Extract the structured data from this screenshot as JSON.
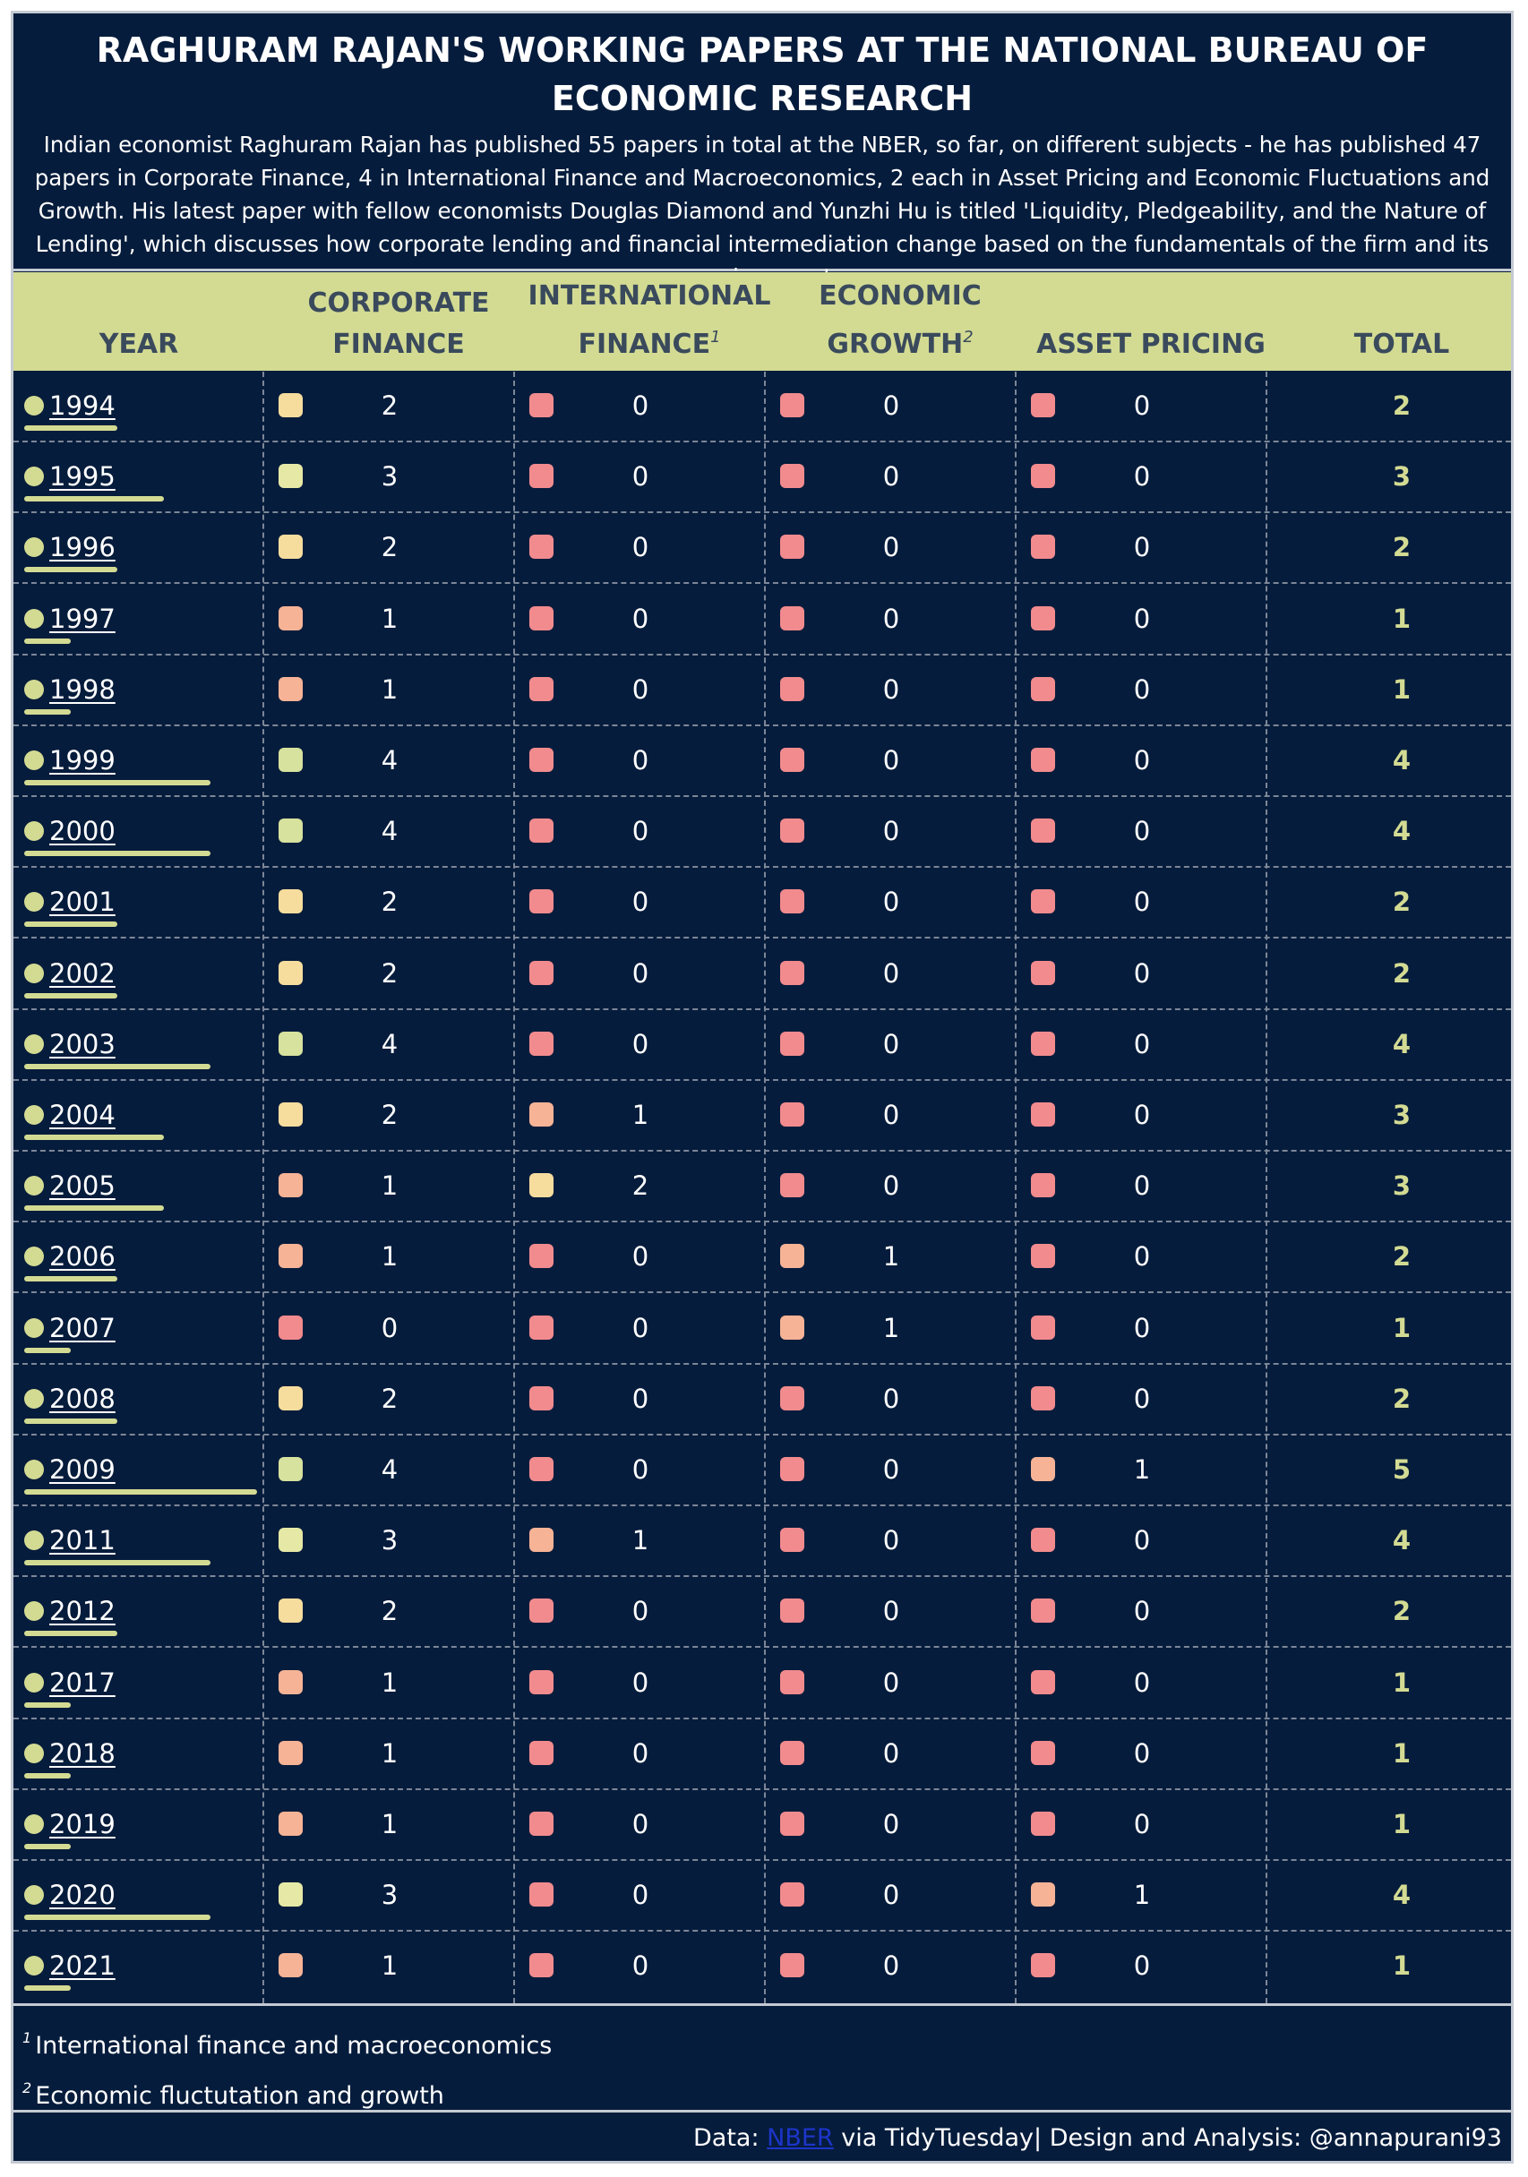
{
  "title": "RAGHURAM RAJAN'S WORKING PAPERS AT THE NATIONAL BUREAU OF ECONOMIC RESEARCH",
  "subtitle": "Indian economist Raghuram Rajan has published 55 papers in total at the NBER, so far, on different subjects - he has published 47 papers in Corporate Finance, 4 in International Finance and Macroeconomics, 2 each in Asset Pricing and Economic Fluctuations and Growth. His latest paper with fellow economists Douglas Diamond and Yunzhi Hu is titled 'Liquidity, Pledgeability, and the Nature of Lending', which discusses how corporate lending and financial intermediation change based on the fundamentals of the firm and its environment",
  "columns": {
    "year": "YEAR",
    "corporate": "CORPORATE FINANCE",
    "international": "INTERNATIONAL FINANCE",
    "international_sup": "1",
    "growth": "ECONOMIC GROWTH",
    "growth_sup": "2",
    "asset": "ASSET PRICING",
    "total": "TOTAL"
  },
  "colors": {
    "background": "#061c3c",
    "header_band": "#d3db93",
    "year_bar": "#d3db93",
    "total_text": "#d3db93",
    "scale": {
      "0": "#f28b8e",
      "1": "#f6b396",
      "2": "#f6dd9e",
      "3": "#e6e9a6",
      "4": "#d6e29d"
    }
  },
  "rows": [
    {
      "year": "1994",
      "corporate": 2,
      "international": 0,
      "growth": 0,
      "asset": 0,
      "total": 2
    },
    {
      "year": "1995",
      "corporate": 3,
      "international": 0,
      "growth": 0,
      "asset": 0,
      "total": 3
    },
    {
      "year": "1996",
      "corporate": 2,
      "international": 0,
      "growth": 0,
      "asset": 0,
      "total": 2
    },
    {
      "year": "1997",
      "corporate": 1,
      "international": 0,
      "growth": 0,
      "asset": 0,
      "total": 1
    },
    {
      "year": "1998",
      "corporate": 1,
      "international": 0,
      "growth": 0,
      "asset": 0,
      "total": 1
    },
    {
      "year": "1999",
      "corporate": 4,
      "international": 0,
      "growth": 0,
      "asset": 0,
      "total": 4
    },
    {
      "year": "2000",
      "corporate": 4,
      "international": 0,
      "growth": 0,
      "asset": 0,
      "total": 4
    },
    {
      "year": "2001",
      "corporate": 2,
      "international": 0,
      "growth": 0,
      "asset": 0,
      "total": 2
    },
    {
      "year": "2002",
      "corporate": 2,
      "international": 0,
      "growth": 0,
      "asset": 0,
      "total": 2
    },
    {
      "year": "2003",
      "corporate": 4,
      "international": 0,
      "growth": 0,
      "asset": 0,
      "total": 4
    },
    {
      "year": "2004",
      "corporate": 2,
      "international": 1,
      "growth": 0,
      "asset": 0,
      "total": 3
    },
    {
      "year": "2005",
      "corporate": 1,
      "international": 2,
      "growth": 0,
      "asset": 0,
      "total": 3
    },
    {
      "year": "2006",
      "corporate": 1,
      "international": 0,
      "growth": 1,
      "asset": 0,
      "total": 2
    },
    {
      "year": "2007",
      "corporate": 0,
      "international": 0,
      "growth": 1,
      "asset": 0,
      "total": 1
    },
    {
      "year": "2008",
      "corporate": 2,
      "international": 0,
      "growth": 0,
      "asset": 0,
      "total": 2
    },
    {
      "year": "2009",
      "corporate": 4,
      "international": 0,
      "growth": 0,
      "asset": 1,
      "total": 5
    },
    {
      "year": "2011",
      "corporate": 3,
      "international": 1,
      "growth": 0,
      "asset": 0,
      "total": 4
    },
    {
      "year": "2012",
      "corporate": 2,
      "international": 0,
      "growth": 0,
      "asset": 0,
      "total": 2
    },
    {
      "year": "2017",
      "corporate": 1,
      "international": 0,
      "growth": 0,
      "asset": 0,
      "total": 1
    },
    {
      "year": "2018",
      "corporate": 1,
      "international": 0,
      "growth": 0,
      "asset": 0,
      "total": 1
    },
    {
      "year": "2019",
      "corporate": 1,
      "international": 0,
      "growth": 0,
      "asset": 0,
      "total": 1
    },
    {
      "year": "2020",
      "corporate": 3,
      "international": 0,
      "growth": 0,
      "asset": 1,
      "total": 4
    },
    {
      "year": "2021",
      "corporate": 1,
      "international": 0,
      "growth": 0,
      "asset": 0,
      "total": 1
    }
  ],
  "footnotes": {
    "fn1_mark": "1",
    "fn1": "International finance and macroeconomics",
    "fn2_mark": "2",
    "fn2": "Economic fluctutation and growth"
  },
  "credit": {
    "prefix": "Data: ",
    "link": "NBER",
    "suffix": " via TidyTuesday| Design and Analysis: @annapurani93"
  }
}
